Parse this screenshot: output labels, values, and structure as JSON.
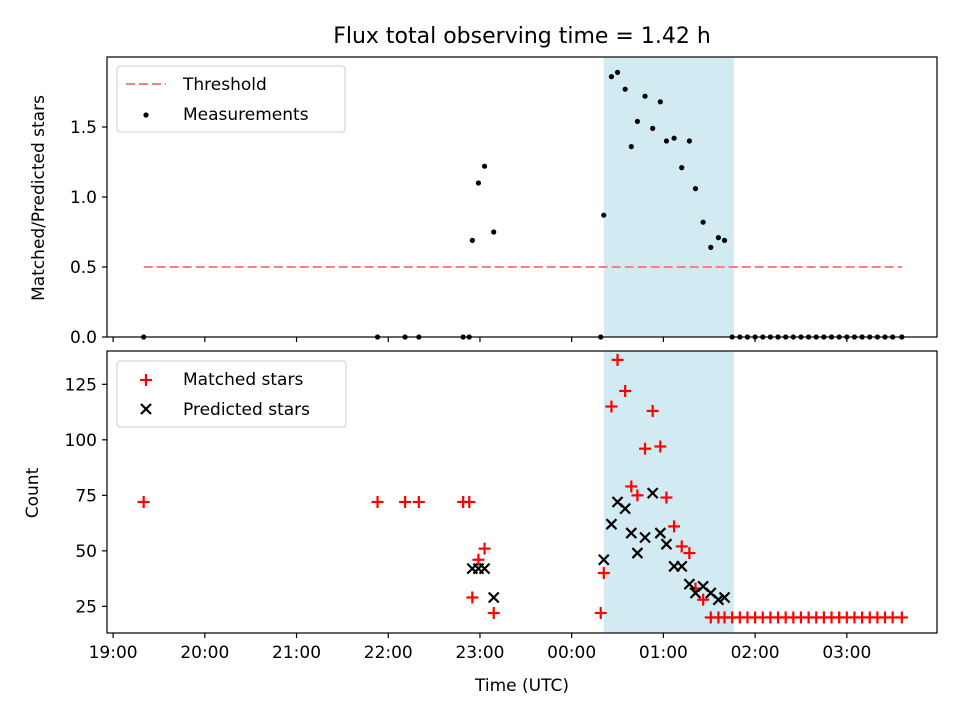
{
  "figure": {
    "title": "Flux total observing time = 1.42 h",
    "xlabel": "Time (UTC)"
  },
  "chart_data": [
    {
      "type": "scatter",
      "ylabel": "Matched/Predicted stars",
      "xlim": [
        "18:56",
        "03:59"
      ],
      "ylim": [
        0,
        2.0
      ],
      "yticks": [
        0.0,
        0.5,
        1.0,
        1.5
      ],
      "ytick_labels": [
        "0.0",
        "0.5",
        "1.0",
        "1.5"
      ],
      "xticks": [
        "19:00",
        "20:00",
        "21:00",
        "22:00",
        "23:00",
        "00:00",
        "01:00",
        "02:00",
        "03:00"
      ],
      "legend": {
        "position": "top-left",
        "entries": [
          "Threshold",
          "Measurements"
        ]
      },
      "shaded_span": {
        "x": [
          "00:21",
          "01:46"
        ],
        "color": "#add8e6"
      },
      "threshold": {
        "name": "Threshold",
        "y": 0.5,
        "x": [
          "19:20",
          "03:36"
        ],
        "color": "#ff7f7f",
        "style": "dashed"
      },
      "series": [
        {
          "name": "Measurements",
          "color": "#000000",
          "points": [
            [
              "19:20",
              0
            ],
            [
              "21:53",
              0
            ],
            [
              "22:11",
              0
            ],
            [
              "22:20",
              0
            ],
            [
              "22:49",
              0
            ],
            [
              "22:53",
              0
            ],
            [
              "22:55",
              0.69
            ],
            [
              "22:59",
              1.1
            ],
            [
              "23:03",
              1.22
            ],
            [
              "23:09",
              0.75
            ],
            [
              "00:19",
              0
            ],
            [
              "00:21",
              0.87
            ],
            [
              "00:26",
              1.86
            ],
            [
              "00:30",
              1.89
            ],
            [
              "00:35",
              1.77
            ],
            [
              "00:39",
              1.36
            ],
            [
              "00:43",
              1.54
            ],
            [
              "00:48",
              1.72
            ],
            [
              "00:53",
              1.49
            ],
            [
              "00:58",
              1.68
            ],
            [
              "01:02",
              1.4
            ],
            [
              "01:07",
              1.42
            ],
            [
              "01:12",
              1.21
            ],
            [
              "01:17",
              1.4
            ],
            [
              "01:21",
              1.06
            ],
            [
              "01:26",
              0.82
            ],
            [
              "01:31",
              0.64
            ],
            [
              "01:36",
              0.71
            ],
            [
              "01:40",
              0.69
            ],
            [
              "01:45",
              0
            ],
            [
              "01:50",
              0
            ],
            [
              "01:55",
              0
            ],
            [
              "02:00",
              0
            ],
            [
              "02:05",
              0
            ],
            [
              "02:10",
              0
            ],
            [
              "02:15",
              0
            ],
            [
              "02:20",
              0
            ],
            [
              "02:25",
              0
            ],
            [
              "02:30",
              0
            ],
            [
              "02:35",
              0
            ],
            [
              "02:40",
              0
            ],
            [
              "02:45",
              0
            ],
            [
              "02:50",
              0
            ],
            [
              "02:55",
              0
            ],
            [
              "03:00",
              0
            ],
            [
              "03:05",
              0
            ],
            [
              "03:10",
              0
            ],
            [
              "03:15",
              0
            ],
            [
              "03:20",
              0
            ],
            [
              "03:25",
              0
            ],
            [
              "03:30",
              0
            ],
            [
              "03:36",
              0
            ]
          ]
        }
      ]
    },
    {
      "type": "scatter",
      "ylabel": "Count",
      "xlim": [
        "18:56",
        "03:59"
      ],
      "ylim": [
        13,
        140
      ],
      "yticks": [
        25,
        50,
        75,
        100,
        125
      ],
      "ytick_labels": [
        "25",
        "50",
        "75",
        "100",
        "125"
      ],
      "xticks": [
        "19:00",
        "20:00",
        "21:00",
        "22:00",
        "23:00",
        "00:00",
        "01:00",
        "02:00",
        "03:00"
      ],
      "xtick_labels": [
        "19:00",
        "20:00",
        "21:00",
        "22:00",
        "23:00",
        "00:00",
        "01:00",
        "02:00",
        "03:00"
      ],
      "legend": {
        "position": "top-left",
        "entries": [
          "Matched stars",
          "Predicted stars"
        ]
      },
      "shaded_span": {
        "x": [
          "00:21",
          "01:46"
        ],
        "color": "#add8e6"
      },
      "series": [
        {
          "name": "Matched stars",
          "marker": "plus",
          "color": "#ff0000",
          "points": [
            [
              "19:20",
              72
            ],
            [
              "21:53",
              72
            ],
            [
              "22:11",
              72
            ],
            [
              "22:20",
              72
            ],
            [
              "22:49",
              72
            ],
            [
              "22:53",
              72
            ],
            [
              "22:55",
              29
            ],
            [
              "22:59",
              46
            ],
            [
              "23:03",
              51
            ],
            [
              "23:09",
              22
            ],
            [
              "00:19",
              22
            ],
            [
              "00:21",
              40
            ],
            [
              "00:26",
              115
            ],
            [
              "00:30",
              136
            ],
            [
              "00:35",
              122
            ],
            [
              "00:39",
              79
            ],
            [
              "00:43",
              75
            ],
            [
              "00:48",
              96
            ],
            [
              "00:53",
              113
            ],
            [
              "00:58",
              97
            ],
            [
              "01:02",
              74
            ],
            [
              "01:07",
              61
            ],
            [
              "01:12",
              52
            ],
            [
              "01:17",
              49
            ],
            [
              "01:21",
              33
            ],
            [
              "01:26",
              28
            ],
            [
              "01:31",
              20
            ],
            [
              "01:36",
              20
            ],
            [
              "01:40",
              20
            ],
            [
              "01:45",
              20
            ],
            [
              "01:50",
              20
            ],
            [
              "01:55",
              20
            ],
            [
              "02:00",
              20
            ],
            [
              "02:05",
              20
            ],
            [
              "02:10",
              20
            ],
            [
              "02:15",
              20
            ],
            [
              "02:20",
              20
            ],
            [
              "02:25",
              20
            ],
            [
              "02:30",
              20
            ],
            [
              "02:35",
              20
            ],
            [
              "02:40",
              20
            ],
            [
              "02:45",
              20
            ],
            [
              "02:50",
              20
            ],
            [
              "02:55",
              20
            ],
            [
              "03:00",
              20
            ],
            [
              "03:05",
              20
            ],
            [
              "03:10",
              20
            ],
            [
              "03:15",
              20
            ],
            [
              "03:20",
              20
            ],
            [
              "03:25",
              20
            ],
            [
              "03:30",
              20
            ],
            [
              "03:36",
              20
            ]
          ]
        },
        {
          "name": "Predicted stars",
          "marker": "x",
          "color": "#000000",
          "points": [
            [
              "22:55",
              42
            ],
            [
              "22:59",
              42
            ],
            [
              "23:03",
              42
            ],
            [
              "23:09",
              29
            ],
            [
              "00:21",
              46
            ],
            [
              "00:26",
              62
            ],
            [
              "00:30",
              72
            ],
            [
              "00:35",
              69
            ],
            [
              "00:39",
              58
            ],
            [
              "00:43",
              49
            ],
            [
              "00:48",
              56
            ],
            [
              "00:53",
              76
            ],
            [
              "00:58",
              58
            ],
            [
              "01:02",
              53
            ],
            [
              "01:07",
              43
            ],
            [
              "01:12",
              43
            ],
            [
              "01:17",
              35
            ],
            [
              "01:21",
              31
            ],
            [
              "01:26",
              34
            ],
            [
              "01:31",
              31
            ],
            [
              "01:36",
              28
            ],
            [
              "01:40",
              29
            ]
          ]
        }
      ]
    }
  ]
}
